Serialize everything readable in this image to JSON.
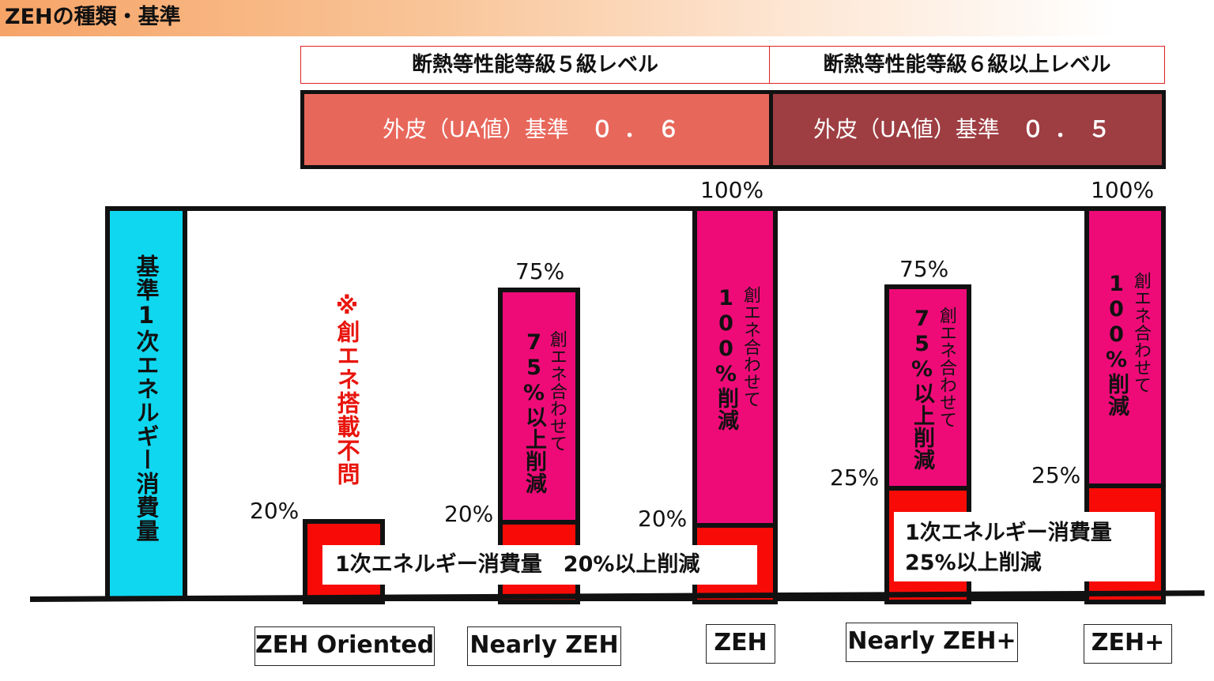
{
  "title": "ZEHの種類・基準",
  "levels": {
    "left": "断熱等性能等級５級レベル",
    "right": "断熱等性能等級６級以上レベル"
  },
  "ua": {
    "left_label": "外皮（UA値）基準",
    "left_value": "０．６",
    "right_label": "外皮（UA値）基準",
    "right_value": "０．５"
  },
  "baseline_label": "基準1次エネルギー消費量",
  "note": "※創エネ搭載不問",
  "percents": {
    "zeh_oriented_red": "20%",
    "nearly_zeh_red": "20%",
    "nearly_zeh_top": "75%",
    "zeh_red": "20%",
    "zeh_top": "100%",
    "nearly_zeh_plus_red": "25%",
    "nearly_zeh_plus_top": "75%",
    "zeh_plus_red": "25%",
    "zeh_plus_top": "100%"
  },
  "bar_texts": {
    "nearly_zeh_bold": "75%以上削減",
    "nearly_zeh_thin": "創エネ合わせて",
    "zeh_bold": "100%削減",
    "zeh_thin": "創エネ合わせて",
    "nearly_zeh_plus_bold": "75%以上削減",
    "nearly_zeh_plus_thin": "創エネ合わせて",
    "zeh_plus_bold": "100%削減",
    "zeh_plus_thin": "創エネ合わせて"
  },
  "reduction_labels": {
    "left": "1次エネルギー消費量　20%以上削減",
    "right_line1": "1次エネルギー消費量",
    "right_line2": "25%以上削減"
  },
  "categories": [
    "ZEH Oriented",
    "Nearly ZEH",
    "ZEH",
    "Nearly ZEH+",
    "ZEH+"
  ],
  "colors": {
    "ua_left": "#e8675b",
    "ua_right": "#9e3e42",
    "creation_energy": "#ee0b78",
    "reduction": "#f80b07",
    "baseline": "#0fd7ef",
    "note": "#e8140c"
  }
}
